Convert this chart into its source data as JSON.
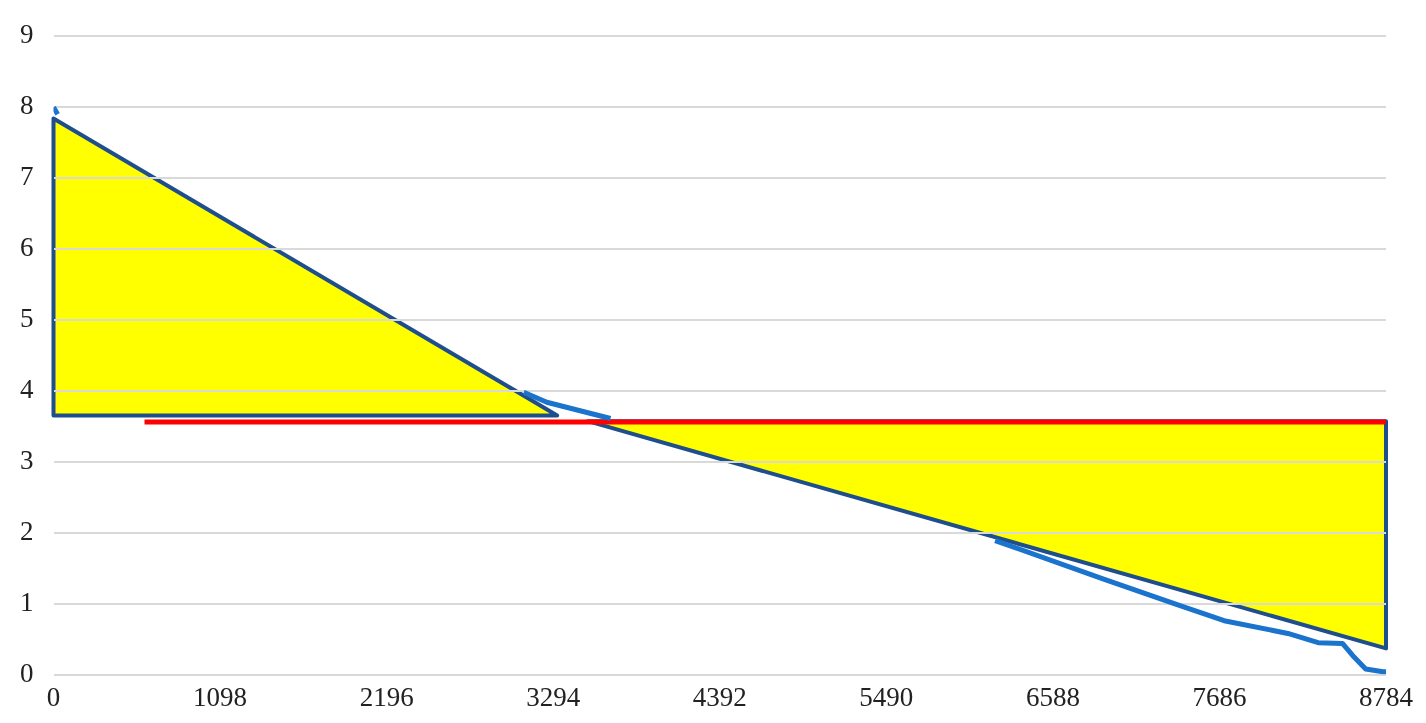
{
  "chart_data": {
    "type": "line",
    "xlim": [
      0,
      8784
    ],
    "xticks": [
      0,
      1098,
      2196,
      3294,
      4392,
      5490,
      6588,
      7686,
      8784
    ],
    "ylim": [
      0,
      9
    ],
    "yticks": [
      0,
      1,
      2,
      3,
      4,
      5,
      6,
      7,
      8,
      9
    ],
    "grid": "y",
    "legend": false,
    "marker": "none",
    "series": [
      {
        "color": "#1a73cc",
        "x": [
          0,
          27,
          1500,
          3100,
          3252,
          3672,
          5000,
          6207,
          6918,
          7431,
          7717,
          8137,
          8337,
          8497,
          8564,
          8650,
          8764,
          8784
        ],
        "values": [
          8.0,
          7.9,
          null,
          3.98,
          3.84,
          3.61,
          null,
          1.89,
          1.35,
          0.97,
          0.76,
          0.58,
          0.45,
          0.44,
          0.27,
          0.08,
          0.04,
          0.04
        ]
      },
      {
        "color": "#ff0000",
        "x": [
          600,
          8784
        ],
        "values": [
          3.56,
          3.56
        ]
      }
    ]
  }
}
